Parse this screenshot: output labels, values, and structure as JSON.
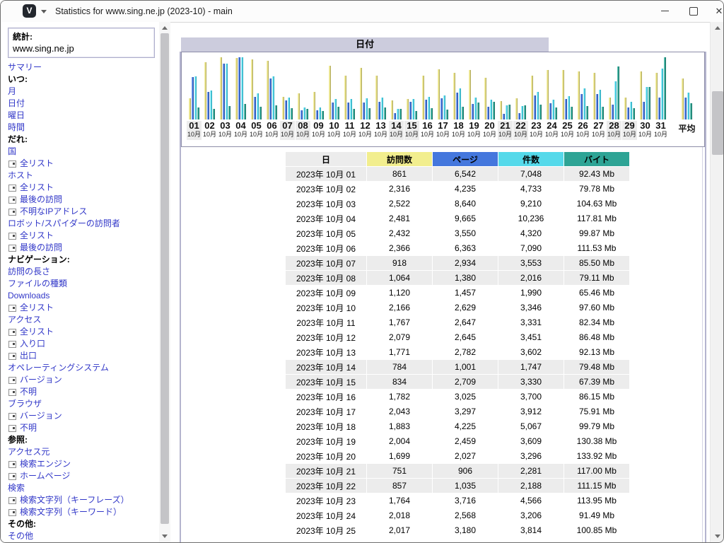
{
  "window": {
    "title": "Statistics for www.sing.ne.jp (2023-10) - main",
    "icon_letter": "V"
  },
  "sidebar": {
    "stats_label": "統計:",
    "site": "www.sing.ne.jp",
    "items": [
      {
        "label": "サマリー",
        "type": "link"
      },
      {
        "label": "いつ:",
        "type": "header"
      },
      {
        "label": "月",
        "type": "link"
      },
      {
        "label": "日付",
        "type": "link"
      },
      {
        "label": "曜日",
        "type": "link"
      },
      {
        "label": "時間",
        "type": "link"
      },
      {
        "label": "だれ:",
        "type": "header"
      },
      {
        "label": "国",
        "type": "link"
      },
      {
        "label": "全リスト",
        "type": "sublink"
      },
      {
        "label": "ホスト",
        "type": "link"
      },
      {
        "label": "全リスト",
        "type": "sublink"
      },
      {
        "label": "最後の訪問",
        "type": "sublink"
      },
      {
        "label": "不明なIPアドレス",
        "type": "sublink"
      },
      {
        "label": "ロボット/スパイダーの訪問者",
        "type": "link"
      },
      {
        "label": "全リスト",
        "type": "sublink"
      },
      {
        "label": "最後の訪問",
        "type": "sublink"
      },
      {
        "label": "ナビゲーション:",
        "type": "header"
      },
      {
        "label": "訪問の長さ",
        "type": "link"
      },
      {
        "label": "ファイルの種類",
        "type": "link"
      },
      {
        "label": "Downloads",
        "type": "link"
      },
      {
        "label": "全リスト",
        "type": "sublink"
      },
      {
        "label": "アクセス",
        "type": "link"
      },
      {
        "label": "全リスト",
        "type": "sublink"
      },
      {
        "label": "入り口",
        "type": "sublink"
      },
      {
        "label": "出口",
        "type": "sublink"
      },
      {
        "label": "オペレーティングシステム",
        "type": "link"
      },
      {
        "label": "バージョン",
        "type": "sublink"
      },
      {
        "label": "不明",
        "type": "sublink"
      },
      {
        "label": "ブラウザ",
        "type": "link"
      },
      {
        "label": "バージョン",
        "type": "sublink"
      },
      {
        "label": "不明",
        "type": "sublink"
      },
      {
        "label": "参照:",
        "type": "header"
      },
      {
        "label": "アクセス元",
        "type": "link"
      },
      {
        "label": "検索エンジン",
        "type": "sublink"
      },
      {
        "label": "ホームページ",
        "type": "sublink"
      },
      {
        "label": "検索",
        "type": "link"
      },
      {
        "label": "検索文字列（キーフレーズ）",
        "type": "sublink"
      },
      {
        "label": "検索文字列（キーワード）",
        "type": "sublink"
      },
      {
        "label": "その他:",
        "type": "header"
      },
      {
        "label": "その他",
        "type": "link"
      }
    ]
  },
  "chart_data": {
    "type": "bar",
    "title": "日付",
    "categories": [
      "01",
      "02",
      "03",
      "04",
      "05",
      "06",
      "07",
      "08",
      "09",
      "10",
      "11",
      "12",
      "13",
      "14",
      "15",
      "16",
      "17",
      "18",
      "19",
      "20",
      "21",
      "22",
      "23",
      "24",
      "25",
      "26",
      "27",
      "28",
      "29",
      "30",
      "31"
    ],
    "category_sublabel": "10月",
    "average_label": "平均",
    "weekend_days": [
      1,
      7,
      8,
      14,
      15,
      21,
      22,
      28,
      29
    ],
    "estimated_days": [
      26,
      27,
      28,
      29,
      30,
      31
    ],
    "ylabel": "",
    "grid": false,
    "normalization": "each series scaled to its own maximum",
    "series": [
      {
        "name": "訪問数",
        "color": "#E6E084",
        "values": [
          861,
          2316,
          2522,
          2481,
          2432,
          2366,
          918,
          1064,
          1120,
          2166,
          1767,
          2079,
          1771,
          784,
          834,
          1782,
          2043,
          1883,
          2004,
          1699,
          751,
          857,
          1764,
          2018,
          2017,
          1950,
          1900,
          900,
          900,
          1950,
          1900
        ],
        "average": 1671,
        "max": 2522
      },
      {
        "name": "ページ",
        "color": "#4477DD",
        "values": [
          6542,
          4235,
          8640,
          9665,
          3550,
          6363,
          2934,
          1380,
          1457,
          2629,
          2647,
          2645,
          2782,
          1001,
          2709,
          3025,
          3297,
          4225,
          2459,
          2027,
          906,
          1035,
          3716,
          2568,
          3180,
          4000,
          4000,
          2300,
          1900,
          2700,
          3400
        ],
        "average": 3352,
        "max": 9665
      },
      {
        "name": "件数",
        "color": "#55D9EA",
        "values": [
          7048,
          4733,
          9210,
          10236,
          4320,
          7090,
          3553,
          2016,
          1990,
          3346,
          3331,
          3451,
          3602,
          1747,
          3330,
          3700,
          3912,
          5067,
          3609,
          3296,
          2281,
          2188,
          4566,
          3206,
          3814,
          5100,
          4900,
          6300,
          2900,
          5300,
          8400
        ],
        "average": 4437,
        "max": 10236
      },
      {
        "name": "バイト",
        "unit": "Mb",
        "color": "#2EA495",
        "values": [
          92.43,
          79.78,
          104.63,
          117.81,
          99.87,
          111.53,
          85.5,
          79.11,
          65.46,
          97.6,
          82.34,
          86.48,
          92.13,
          79.48,
          67.39,
          86.15,
          75.91,
          99.79,
          130.38,
          133.92,
          117,
          111.15,
          113.95,
          91.49,
          100.85,
          105,
          96,
          410,
          86,
          250,
          480
        ],
        "average": 123.5,
        "max": 480
      }
    ]
  },
  "table": {
    "headers": [
      {
        "label": "日",
        "bg": "#ECECEC"
      },
      {
        "label": "訪問数",
        "bg": "#F2EE8E"
      },
      {
        "label": "ページ",
        "bg": "#4477DD"
      },
      {
        "label": "件数",
        "bg": "#55D9EA"
      },
      {
        "label": "バイト",
        "bg": "#2EA495"
      }
    ],
    "rows": [
      {
        "date": "2023年 10月 01",
        "visits": "861",
        "pages": "6,542",
        "hits": "7,048",
        "bytes": "92.43 Mb",
        "weekend": true
      },
      {
        "date": "2023年 10月 02",
        "visits": "2,316",
        "pages": "4,235",
        "hits": "4,733",
        "bytes": "79.78 Mb",
        "weekend": false
      },
      {
        "date": "2023年 10月 03",
        "visits": "2,522",
        "pages": "8,640",
        "hits": "9,210",
        "bytes": "104.63 Mb",
        "weekend": false
      },
      {
        "date": "2023年 10月 04",
        "visits": "2,481",
        "pages": "9,665",
        "hits": "10,236",
        "bytes": "117.81 Mb",
        "weekend": false
      },
      {
        "date": "2023年 10月 05",
        "visits": "2,432",
        "pages": "3,550",
        "hits": "4,320",
        "bytes": "99.87 Mb",
        "weekend": false
      },
      {
        "date": "2023年 10月 06",
        "visits": "2,366",
        "pages": "6,363",
        "hits": "7,090",
        "bytes": "111.53 Mb",
        "weekend": false
      },
      {
        "date": "2023年 10月 07",
        "visits": "918",
        "pages": "2,934",
        "hits": "3,553",
        "bytes": "85.50 Mb",
        "weekend": true
      },
      {
        "date": "2023年 10月 08",
        "visits": "1,064",
        "pages": "1,380",
        "hits": "2,016",
        "bytes": "79.11 Mb",
        "weekend": true
      },
      {
        "date": "2023年 10月 09",
        "visits": "1,120",
        "pages": "1,457",
        "hits": "1,990",
        "bytes": "65.46 Mb",
        "weekend": false
      },
      {
        "date": "2023年 10月 10",
        "visits": "2,166",
        "pages": "2,629",
        "hits": "3,346",
        "bytes": "97.60 Mb",
        "weekend": false
      },
      {
        "date": "2023年 10月 11",
        "visits": "1,767",
        "pages": "2,647",
        "hits": "3,331",
        "bytes": "82.34 Mb",
        "weekend": false
      },
      {
        "date": "2023年 10月 12",
        "visits": "2,079",
        "pages": "2,645",
        "hits": "3,451",
        "bytes": "86.48 Mb",
        "weekend": false
      },
      {
        "date": "2023年 10月 13",
        "visits": "1,771",
        "pages": "2,782",
        "hits": "3,602",
        "bytes": "92.13 Mb",
        "weekend": false
      },
      {
        "date": "2023年 10月 14",
        "visits": "784",
        "pages": "1,001",
        "hits": "1,747",
        "bytes": "79.48 Mb",
        "weekend": true
      },
      {
        "date": "2023年 10月 15",
        "visits": "834",
        "pages": "2,709",
        "hits": "3,330",
        "bytes": "67.39 Mb",
        "weekend": true
      },
      {
        "date": "2023年 10月 16",
        "visits": "1,782",
        "pages": "3,025",
        "hits": "3,700",
        "bytes": "86.15 Mb",
        "weekend": false
      },
      {
        "date": "2023年 10月 17",
        "visits": "2,043",
        "pages": "3,297",
        "hits": "3,912",
        "bytes": "75.91 Mb",
        "weekend": false
      },
      {
        "date": "2023年 10月 18",
        "visits": "1,883",
        "pages": "4,225",
        "hits": "5,067",
        "bytes": "99.79 Mb",
        "weekend": false
      },
      {
        "date": "2023年 10月 19",
        "visits": "2,004",
        "pages": "2,459",
        "hits": "3,609",
        "bytes": "130.38 Mb",
        "weekend": false
      },
      {
        "date": "2023年 10月 20",
        "visits": "1,699",
        "pages": "2,027",
        "hits": "3,296",
        "bytes": "133.92 Mb",
        "weekend": false
      },
      {
        "date": "2023年 10月 21",
        "visits": "751",
        "pages": "906",
        "hits": "2,281",
        "bytes": "117.00 Mb",
        "weekend": true
      },
      {
        "date": "2023年 10月 22",
        "visits": "857",
        "pages": "1,035",
        "hits": "2,188",
        "bytes": "111.15 Mb",
        "weekend": true
      },
      {
        "date": "2023年 10月 23",
        "visits": "1,764",
        "pages": "3,716",
        "hits": "4,566",
        "bytes": "113.95 Mb",
        "weekend": false
      },
      {
        "date": "2023年 10月 24",
        "visits": "2,018",
        "pages": "2,568",
        "hits": "3,206",
        "bytes": "91.49 Mb",
        "weekend": false
      },
      {
        "date": "2023年 10月 25",
        "visits": "2,017",
        "pages": "3,180",
        "hits": "3,814",
        "bytes": "100.85 Mb",
        "weekend": false
      }
    ]
  }
}
